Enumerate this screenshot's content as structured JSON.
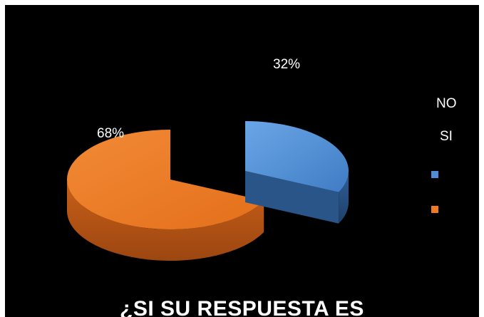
{
  "chart_data": {
    "type": "pie",
    "title": "¿SI SU RESPUESTA ES",
    "categories": [
      "NO",
      "SI"
    ],
    "values": [
      32,
      68
    ],
    "data_labels": [
      "32%",
      "68%"
    ],
    "colors": {
      "NO": "#4f8ed6",
      "SI": "#ef7a22",
      "background": "#000000"
    },
    "style": "3d exploded pie",
    "legend": {
      "placement": "right",
      "entries": [
        "NO",
        "SI"
      ]
    }
  }
}
